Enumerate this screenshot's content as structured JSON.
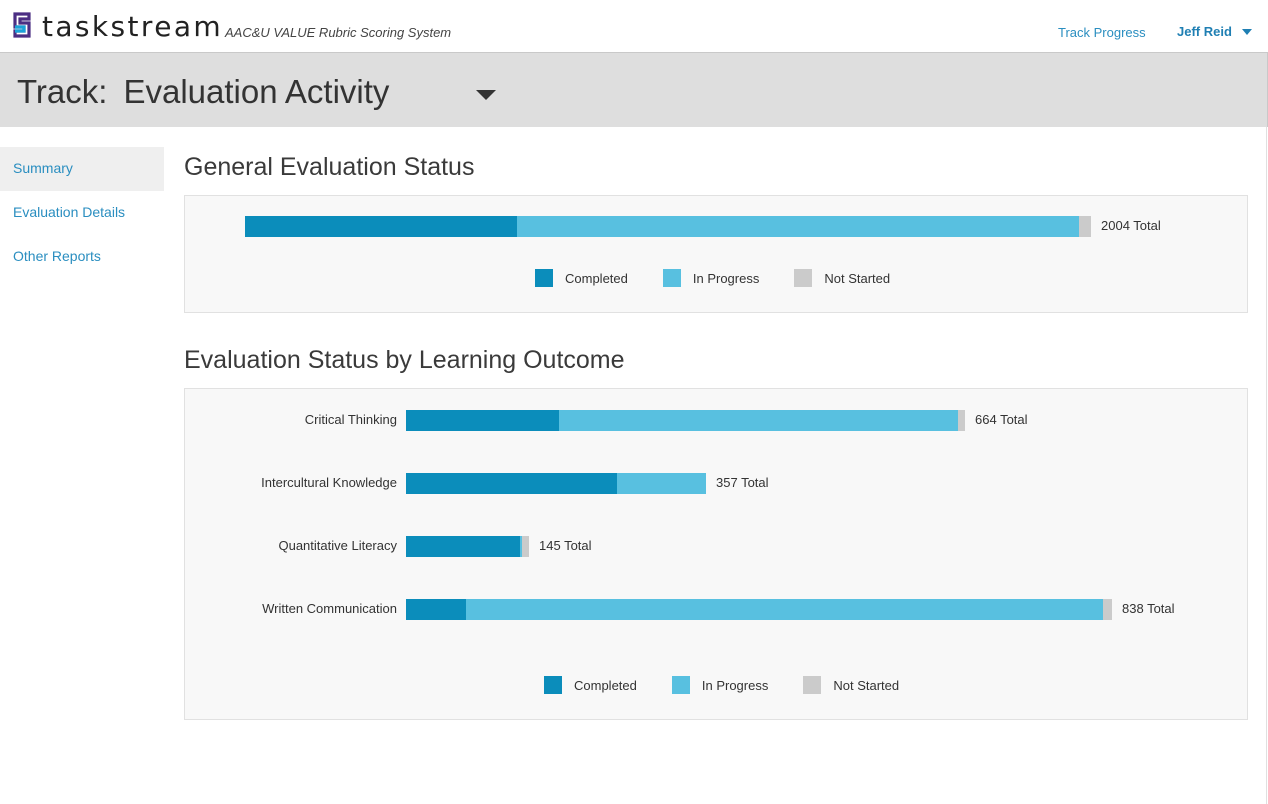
{
  "header": {
    "brand": "taskstream",
    "subtitle": "AAC&U VALUE Rubric Scoring System",
    "nav_link": "Track Progress",
    "user_name": "Jeff Reid"
  },
  "track": {
    "label": "Track:",
    "value": "Evaluation Activity"
  },
  "sidebar": {
    "items": [
      {
        "label": "Summary",
        "active": true
      },
      {
        "label": "Evaluation Details",
        "active": false
      },
      {
        "label": "Other Reports",
        "active": false
      }
    ]
  },
  "colors": {
    "completed": "#0b8dbb",
    "in_progress": "#58c0e0",
    "not_started": "#cbcbcb",
    "link": "#2a8ec0"
  },
  "legend": {
    "completed": "Completed",
    "in_progress": "In Progress",
    "not_started": "Not Started"
  },
  "general": {
    "title": "General Evaluation Status",
    "total_label": "2004 Total",
    "total": 2004,
    "completed": 645,
    "in_progress": 1331,
    "not_started": 28
  },
  "outcomes": {
    "title": "Evaluation Status by Learning Outcome",
    "rows": [
      {
        "name": "Critical Thinking",
        "total_label": "664 Total",
        "total": 664,
        "completed": 182,
        "in_progress": 474,
        "not_started": 8
      },
      {
        "name": "Intercultural Knowledge",
        "total_label": "357 Total",
        "total": 357,
        "completed": 251,
        "in_progress": 106,
        "not_started": 0
      },
      {
        "name": "Quantitative Literacy",
        "total_label": "145 Total",
        "total": 145,
        "completed": 135,
        "in_progress": 2,
        "not_started": 8
      },
      {
        "name": "Written Communication",
        "total_label": "838 Total",
        "total": 838,
        "completed": 71,
        "in_progress": 756,
        "not_started": 11
      }
    ]
  },
  "chart_data": [
    {
      "type": "bar",
      "orientation": "horizontal",
      "stacked": true,
      "title": "General Evaluation Status",
      "categories": [
        ""
      ],
      "series": [
        {
          "name": "Completed",
          "values": [
            645
          ]
        },
        {
          "name": "In Progress",
          "values": [
            1331
          ]
        },
        {
          "name": "Not Started",
          "values": [
            28
          ]
        }
      ],
      "annotations": [
        "2004 Total"
      ],
      "legend": "bottom"
    },
    {
      "type": "bar",
      "orientation": "horizontal",
      "stacked": true,
      "title": "Evaluation Status by Learning Outcome",
      "categories": [
        "Critical Thinking",
        "Intercultural Knowledge",
        "Quantitative Literacy",
        "Written Communication"
      ],
      "series": [
        {
          "name": "Completed",
          "values": [
            182,
            251,
            135,
            71
          ]
        },
        {
          "name": "In Progress",
          "values": [
            474,
            106,
            2,
            756
          ]
        },
        {
          "name": "Not Started",
          "values": [
            8,
            0,
            8,
            11
          ]
        }
      ],
      "annotations": [
        "664 Total",
        "357 Total",
        "145 Total",
        "838 Total"
      ],
      "legend": "bottom"
    }
  ]
}
